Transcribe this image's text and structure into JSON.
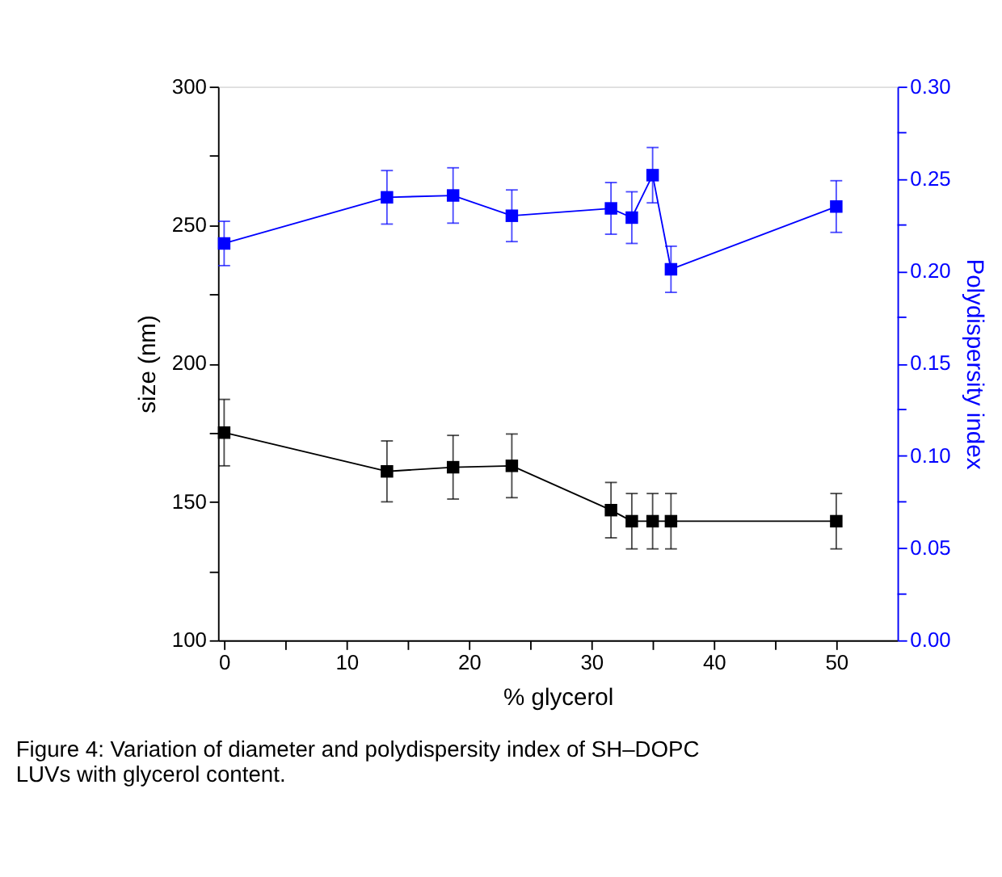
{
  "chart_data": {
    "type": "line",
    "xlabel": "% glycerol",
    "ylabel": "size (nm)",
    "y2label": "Polydispersity index",
    "x": [
      0,
      13.3,
      18.7,
      23.5,
      31.6,
      33.3,
      35,
      36.5,
      50
    ],
    "series": [
      {
        "color": "#000000",
        "axis": "y",
        "values": [
          175,
          161,
          162.5,
          163,
          147,
          143,
          143,
          143,
          143
        ],
        "errors": [
          12,
          11,
          11.5,
          11.5,
          10,
          10,
          10,
          10,
          10
        ]
      },
      {
        "color": "#0000ff",
        "axis": "y2",
        "values": [
          0.215,
          0.24,
          0.241,
          0.23,
          0.234,
          0.229,
          0.252,
          0.201,
          0.235
        ],
        "errors": [
          0.012,
          0.0145,
          0.015,
          0.014,
          0.014,
          0.014,
          0.015,
          0.0125,
          0.014
        ]
      }
    ],
    "xlim": [
      -0.5,
      55
    ],
    "xticks": [
      0,
      {
        "value": 5,
        "label": null
      },
      10,
      {
        "value": 15,
        "label": null
      },
      20,
      {
        "value": 25,
        "label": null
      },
      30,
      {
        "value": 35,
        "label": null
      },
      40,
      {
        "value": 45,
        "label": null
      },
      50
    ],
    "ylim": [
      100,
      300
    ],
    "yticks": [
      100,
      {
        "value": 125,
        "label": null
      },
      150,
      {
        "value": 175,
        "label": null
      },
      200,
      {
        "value": 225,
        "label": null
      },
      250,
      {
        "value": 275,
        "label": null
      },
      300
    ],
    "y2lim": [
      0,
      0.3
    ],
    "y2ticks": [
      {
        "value": 0,
        "label": "0.00"
      },
      {
        "value": 0.025,
        "label": null
      },
      {
        "value": 0.05,
        "label": "0.05"
      },
      {
        "value": 0.075,
        "label": null
      },
      {
        "value": 0.1,
        "label": "0.10"
      },
      {
        "value": 0.125,
        "label": null
      },
      {
        "value": 0.15,
        "label": "0.15"
      },
      {
        "value": 0.175,
        "label": null
      },
      {
        "value": 0.2,
        "label": "0.20"
      },
      {
        "value": 0.225,
        "label": null
      },
      {
        "value": 0.25,
        "label": "0.25"
      },
      {
        "value": 0.275,
        "label": null
      },
      {
        "value": 0.3,
        "label": "0.30"
      }
    ],
    "marker": "square",
    "line_style": "solid",
    "grid": false,
    "annotations": [
      "Figure 4: Variation of diameter and polydispersity index of SH–DOPC LUVs with glycerol content."
    ]
  }
}
